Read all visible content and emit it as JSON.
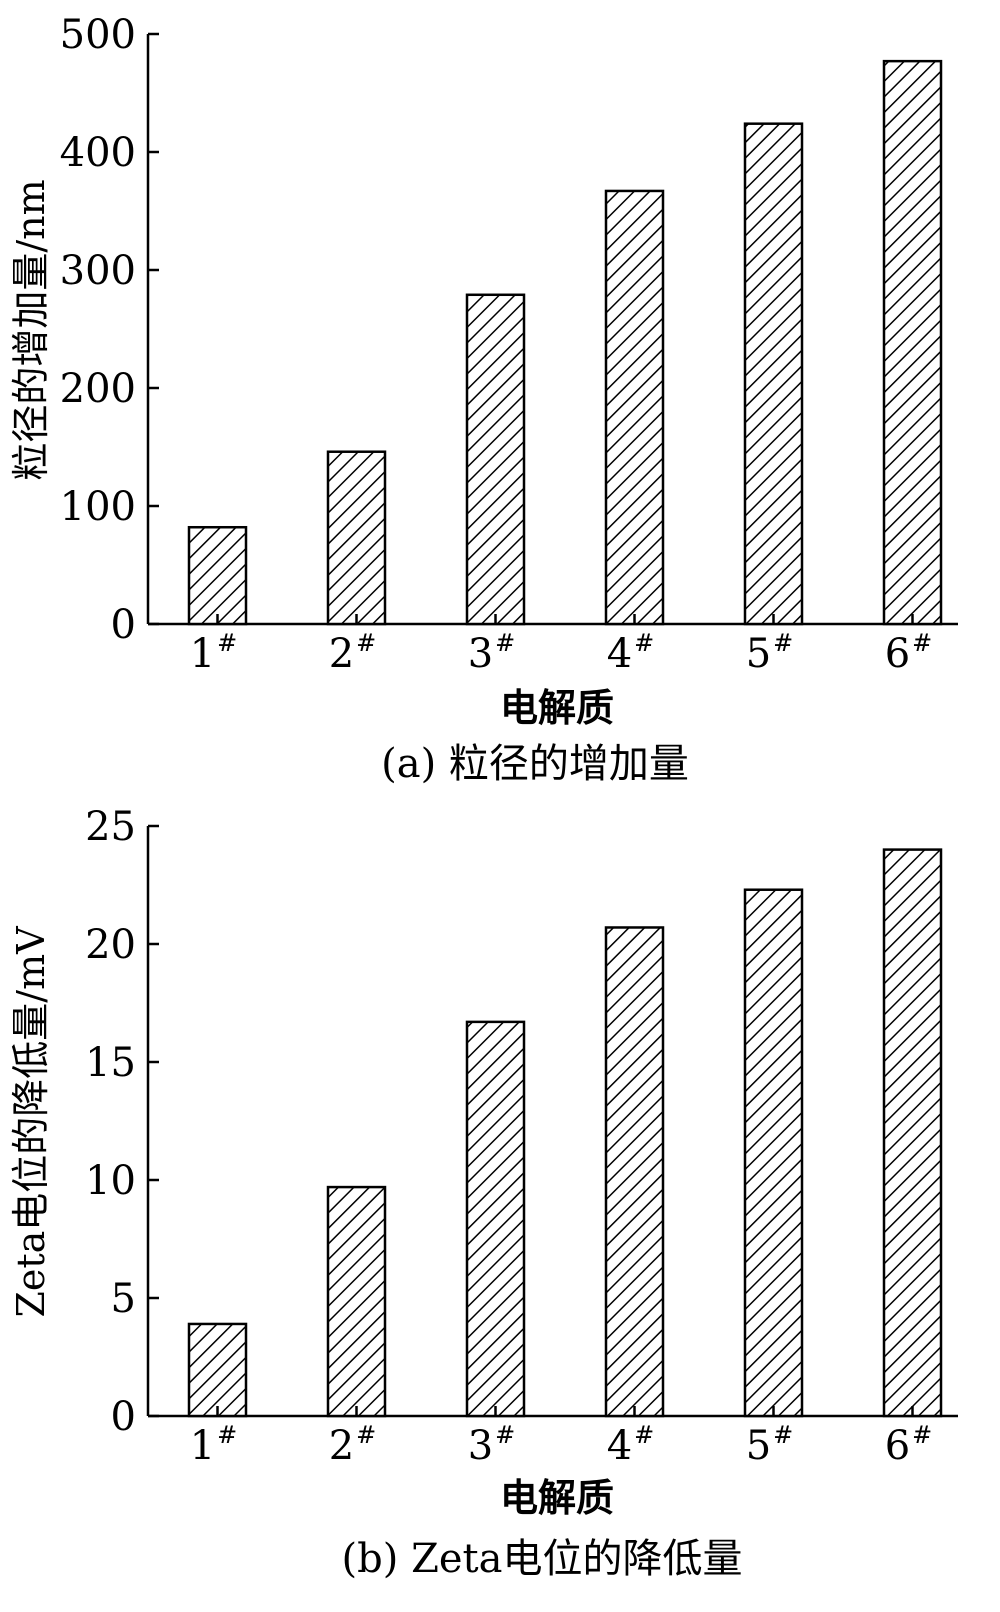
{
  "chart_data": [
    {
      "type": "bar",
      "title": "",
      "caption": "(a) 粒径的增加量",
      "xlabel": "电解质",
      "ylabel": "粒径的增加量/nm",
      "categories": [
        "1",
        "2",
        "3",
        "4",
        "5",
        "6"
      ],
      "category_superscript": "#",
      "values": [
        82,
        146,
        279,
        367,
        424,
        477
      ],
      "ylim": [
        0,
        500
      ],
      "yticks": [
        0,
        100,
        200,
        300,
        400,
        500
      ],
      "pattern": "diagonal-hatch",
      "grid": false,
      "legend": "none"
    },
    {
      "type": "bar",
      "title": "",
      "caption": "(b) Zeta电位的降低量",
      "xlabel": "电解质",
      "ylabel": "Zeta电位的降低量/mV",
      "categories": [
        "1",
        "2",
        "3",
        "4",
        "5",
        "6"
      ],
      "category_superscript": "#",
      "values": [
        3.9,
        9.7,
        16.7,
        20.7,
        22.3,
        24.0
      ],
      "ylim": [
        0,
        25
      ],
      "yticks": [
        0,
        5,
        10,
        15,
        20,
        25
      ],
      "pattern": "diagonal-hatch",
      "grid": false,
      "legend": "none"
    }
  ]
}
